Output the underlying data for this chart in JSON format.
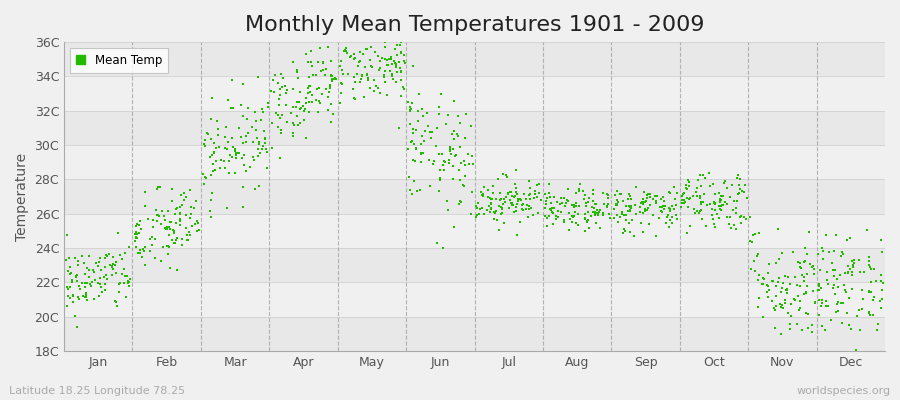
{
  "title": "Monthly Mean Temperatures 1901 - 2009",
  "ylabel": "Temperature",
  "subtitle": "Latitude 18.25 Longitude 78.25",
  "watermark": "worldspecies.org",
  "dot_color": "#22bb00",
  "legend_label": "Mean Temp",
  "ylim": [
    18,
    36
  ],
  "ytick_labels": [
    "18C",
    "20C",
    "22C",
    "24C",
    "26C",
    "28C",
    "30C",
    "32C",
    "34C",
    "36C"
  ],
  "ytick_values": [
    18,
    20,
    22,
    24,
    26,
    28,
    30,
    32,
    34,
    36
  ],
  "month_names": [
    "Jan",
    "Feb",
    "Mar",
    "Apr",
    "May",
    "Jun",
    "Jul",
    "Aug",
    "Sep",
    "Oct",
    "Nov",
    "Dec"
  ],
  "month_means": [
    22.0,
    24.5,
    29.0,
    32.5,
    34.5,
    30.5,
    26.8,
    26.2,
    26.3,
    26.8,
    22.5,
    21.5
  ],
  "month_stds": [
    1.0,
    1.2,
    1.4,
    1.3,
    1.0,
    1.8,
    0.7,
    0.6,
    0.7,
    0.9,
    1.6,
    1.5
  ],
  "month_trends": [
    0.5,
    1.5,
    2.5,
    1.5,
    0.0,
    -3.0,
    0.0,
    0.0,
    0.0,
    0.0,
    -1.5,
    1.0
  ],
  "n_years": 109,
  "background_color": "#f0f0f0",
  "plot_bg_colors": [
    "#e8e8e8",
    "#f0f0f0"
  ],
  "grid_color": "#999999",
  "title_fontsize": 16,
  "label_fontsize": 10,
  "tick_fontsize": 9,
  "dot_size": 3.5,
  "dot_marker": "s"
}
